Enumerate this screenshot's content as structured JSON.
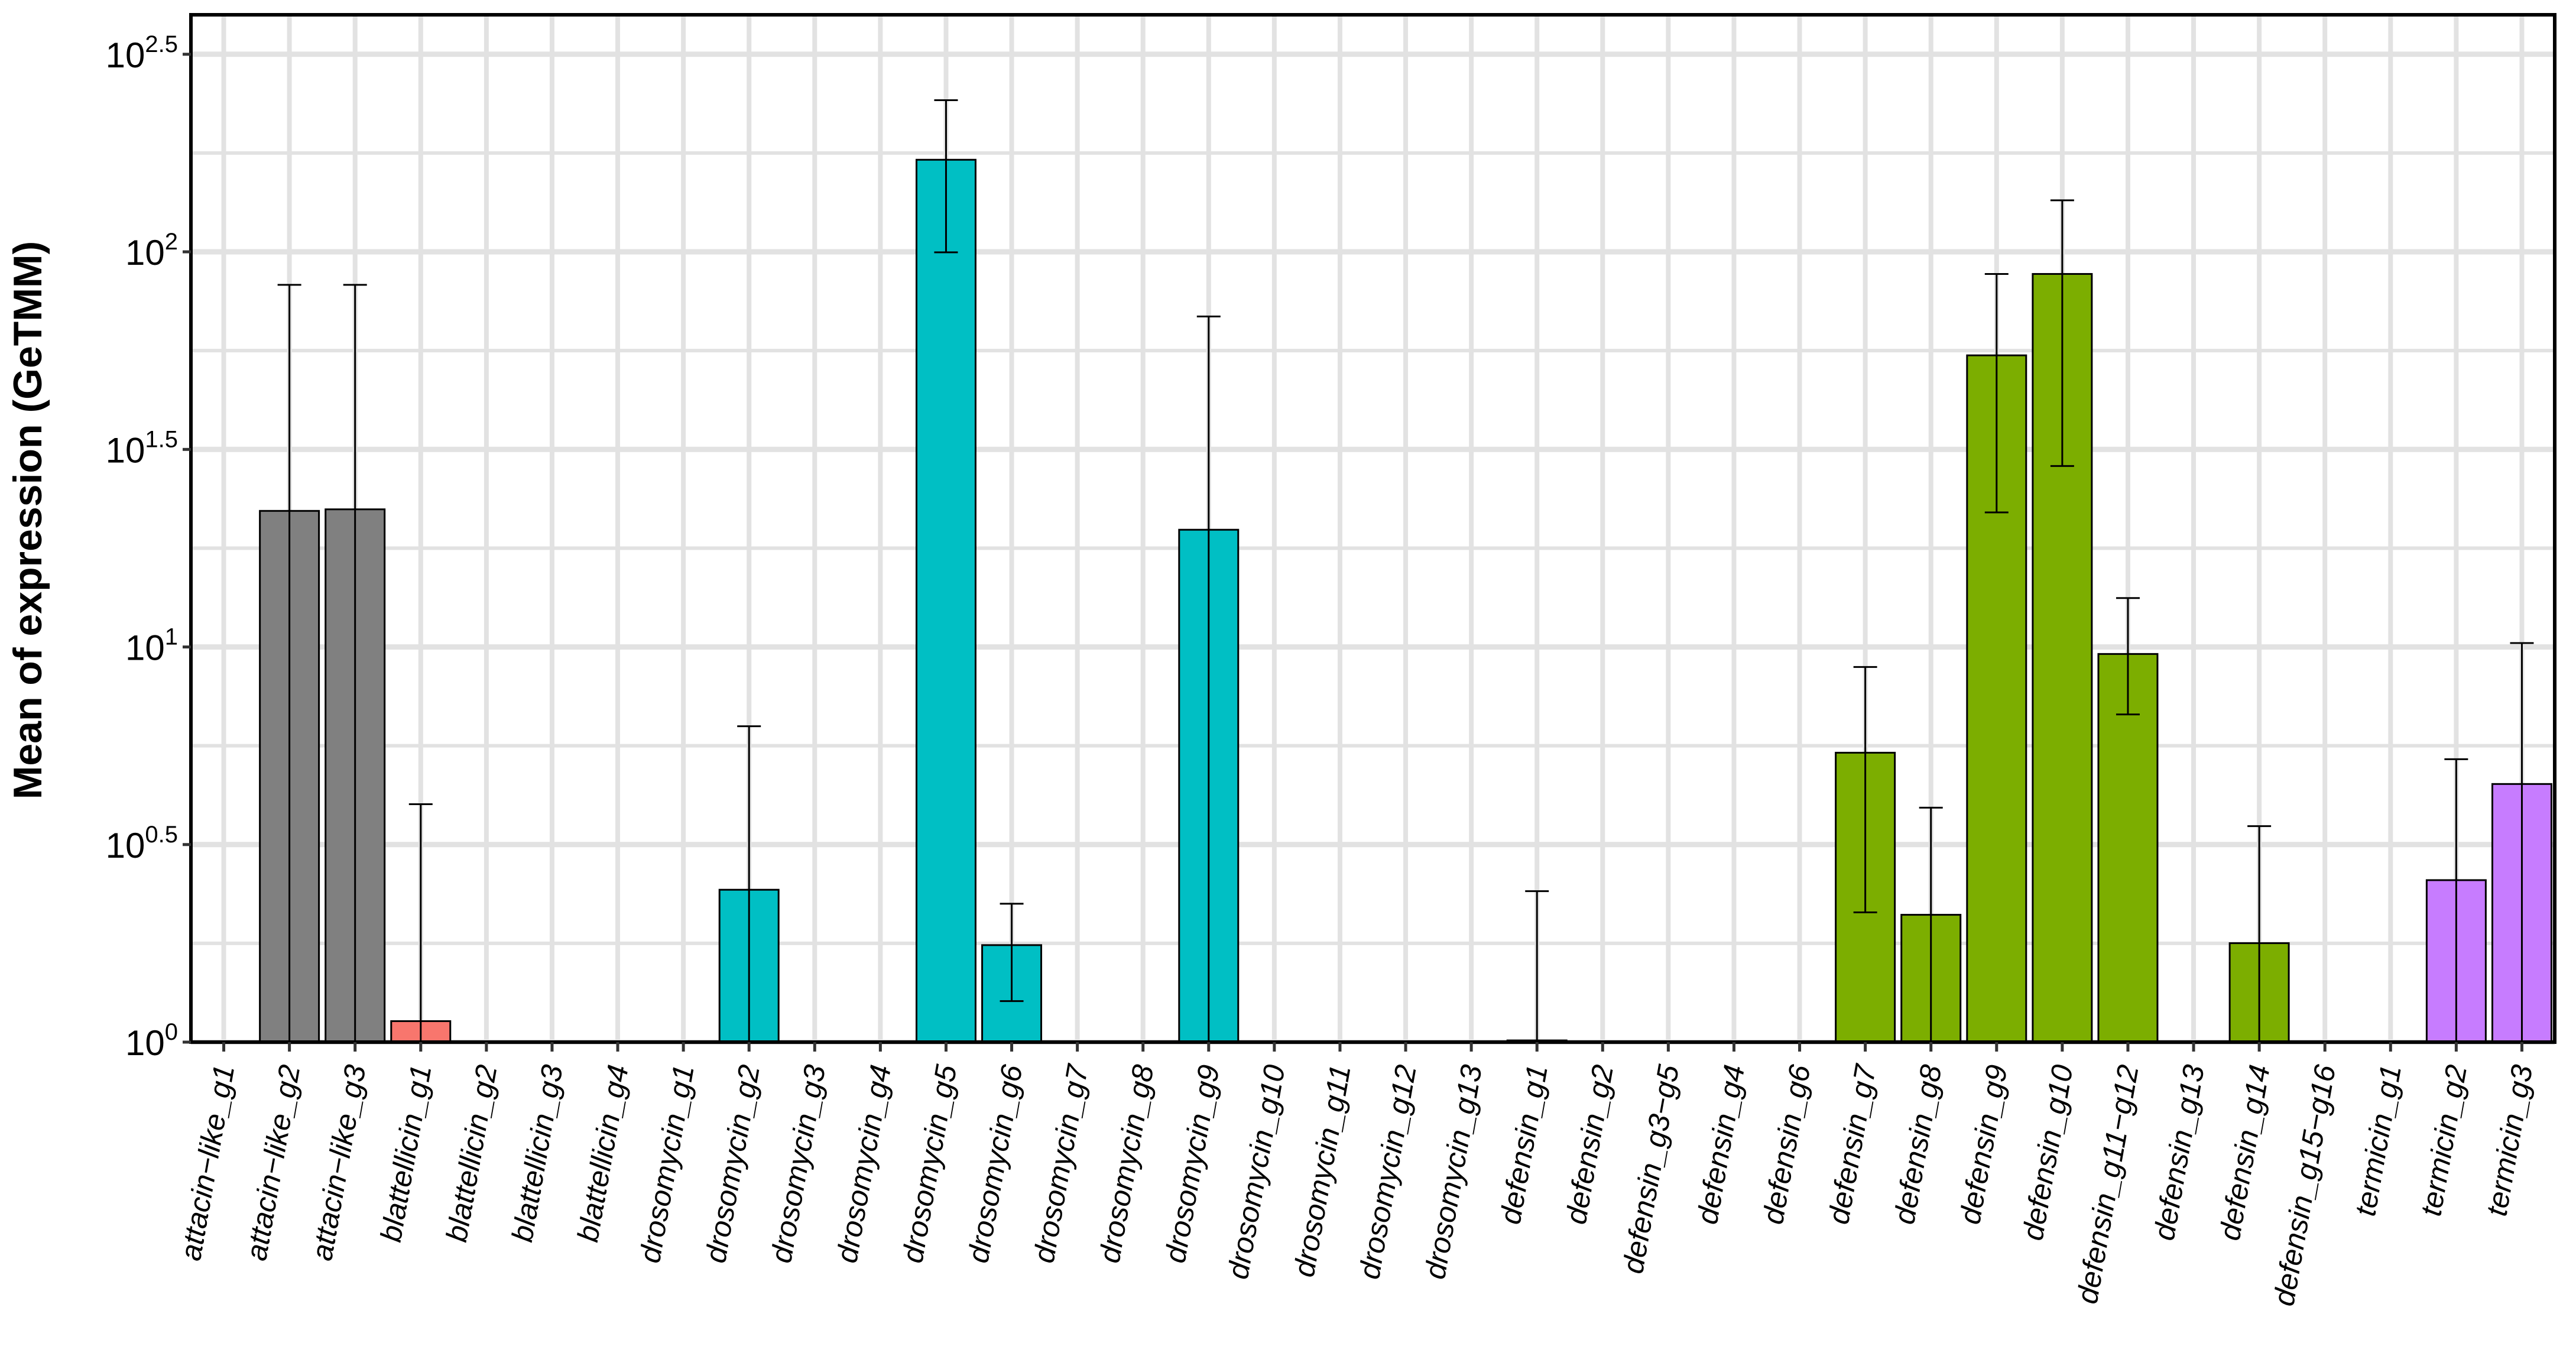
{
  "chart_data": {
    "type": "bar",
    "ylabel": "Mean of expression (GeTMM)",
    "xlabel": "",
    "y_scale": "log10",
    "ylim": [
      1,
      398
    ],
    "y_ticks": [
      {
        "value": 1,
        "base": "10",
        "exp": "0"
      },
      {
        "value": 3.162,
        "base": "10",
        "exp": "0.5"
      },
      {
        "value": 10,
        "base": "10",
        "exp": "1"
      },
      {
        "value": 31.62,
        "base": "10",
        "exp": "1.5"
      },
      {
        "value": 100,
        "base": "10",
        "exp": "2"
      },
      {
        "value": 316.2,
        "base": "10",
        "exp": "2.5"
      }
    ],
    "grid": true,
    "legend": "none",
    "group_colors": {
      "attacin": "#808080",
      "blattellicin": "#f8766d",
      "drosomycin": "#00bfc4",
      "defensin": "#7cae00",
      "termicin": "#c77cff"
    },
    "categories": [
      "attacin−like_g1",
      "attacin−like_g2",
      "attacin−like_g3",
      "blattellicin_g1",
      "blattellicin_g2",
      "blattellicin_g3",
      "blattellicin_g4",
      "drosomycin_g1",
      "drosomycin_g2",
      "drosomycin_g3",
      "drosomycin_g4",
      "drosomycin_g5",
      "drosomycin_g6",
      "drosomycin_g7",
      "drosomycin_g8",
      "drosomycin_g9",
      "drosomycin_g10",
      "drosomycin_g11",
      "drosomycin_g12",
      "drosomycin_g13",
      "defensin_g1",
      "defensin_g2",
      "defensin_g3−g5",
      "defensin_g4",
      "defensin_g6",
      "defensin_g7",
      "defensin_g8",
      "defensin_g9",
      "defensin_g10",
      "defensin_g11−g12",
      "defensin_g13",
      "defensin_g14",
      "defensin_g15−g16",
      "termicin_g1",
      "termicin_g2",
      "termicin_g3"
    ],
    "groups": [
      "attacin",
      "attacin",
      "attacin",
      "blattellicin",
      "blattellicin",
      "blattellicin",
      "blattellicin",
      "drosomycin",
      "drosomycin",
      "drosomycin",
      "drosomycin",
      "drosomycin",
      "drosomycin",
      "drosomycin",
      "drosomycin",
      "drosomycin",
      "drosomycin",
      "drosomycin",
      "drosomycin",
      "drosomycin",
      "defensin",
      "defensin",
      "defensin",
      "defensin",
      "defensin",
      "defensin",
      "defensin",
      "defensin",
      "defensin",
      "defensin",
      "defensin",
      "defensin",
      "defensin",
      "termicin",
      "termicin",
      "termicin"
    ],
    "values": [
      1.0,
      22.1,
      22.3,
      1.13,
      1.0,
      1.0,
      1.0,
      1.0,
      2.43,
      1.0,
      1.0,
      171.0,
      1.76,
      1.0,
      1.0,
      19.8,
      1.0,
      1.0,
      1.0,
      1.0,
      1.01,
      1.0,
      1.0,
      1.0,
      1.0,
      5.4,
      2.1,
      54.7,
      87.9,
      9.6,
      1.0,
      1.78,
      1.0,
      1.0,
      2.57,
      4.5
    ],
    "error_low": [
      null,
      1.0,
      1.0,
      1.0,
      null,
      null,
      null,
      null,
      1.0,
      null,
      null,
      99.7,
      1.27,
      null,
      null,
      1.0,
      null,
      null,
      null,
      null,
      1.0,
      null,
      null,
      null,
      null,
      2.13,
      1.0,
      21.9,
      28.7,
      6.75,
      null,
      1.0,
      null,
      null,
      1.0,
      1.0
    ],
    "error_high": [
      null,
      82.5,
      82.5,
      4.0,
      null,
      null,
      null,
      null,
      6.3,
      null,
      null,
      242.0,
      2.24,
      null,
      null,
      68.6,
      null,
      null,
      null,
      null,
      2.41,
      null,
      null,
      null,
      null,
      8.9,
      3.92,
      87.9,
      135.0,
      13.3,
      null,
      3.52,
      null,
      null,
      5.2,
      10.23
    ]
  }
}
